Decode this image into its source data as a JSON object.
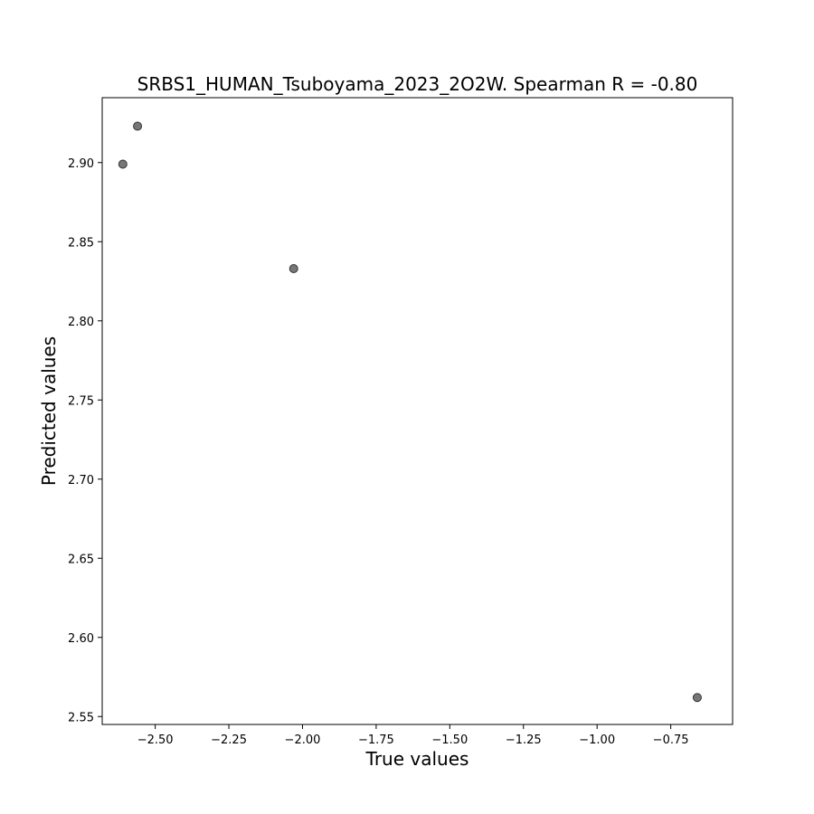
{
  "chart_data": {
    "type": "scatter",
    "title": "SRBS1_HUMAN_Tsuboyama_2023_2O2W. Spearman R = -0.80",
    "xlabel": "True values",
    "ylabel": "Predicted values",
    "xlim": [
      -2.68,
      -0.54
    ],
    "ylim": [
      2.545,
      2.941
    ],
    "xticks": [
      -2.5,
      -2.25,
      -2.0,
      -1.75,
      -1.5,
      -1.25,
      -1.0,
      -0.75
    ],
    "xtick_labels": [
      "−2.50",
      "−2.25",
      "−2.00",
      "−1.75",
      "−1.50",
      "−1.25",
      "−1.00",
      "−0.75"
    ],
    "yticks": [
      2.55,
      2.6,
      2.65,
      2.7,
      2.75,
      2.8,
      2.85,
      2.9
    ],
    "ytick_labels": [
      "2.55",
      "2.60",
      "2.65",
      "2.70",
      "2.75",
      "2.80",
      "2.85",
      "2.90"
    ],
    "grid": false,
    "marker_color": "#555555",
    "points": [
      {
        "x": -2.61,
        "y": 2.899
      },
      {
        "x": -2.56,
        "y": 2.923
      },
      {
        "x": -2.03,
        "y": 2.833
      },
      {
        "x": -0.66,
        "y": 2.562
      }
    ]
  }
}
